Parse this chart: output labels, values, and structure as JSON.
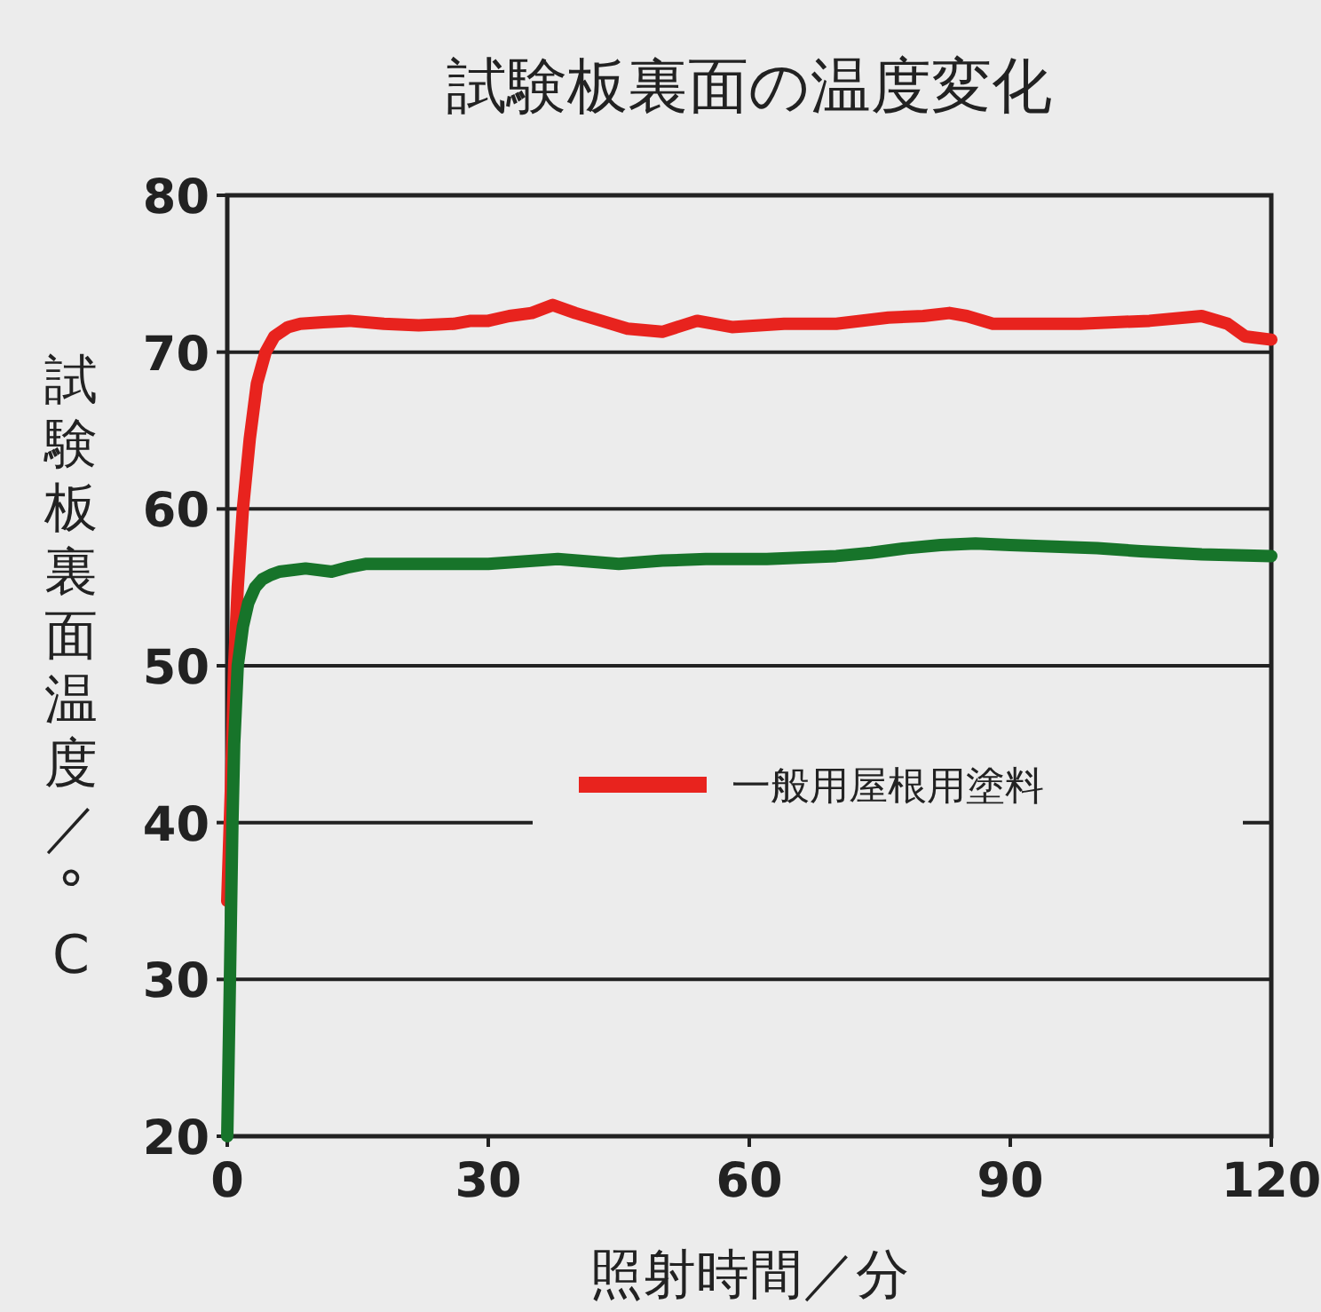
{
  "chart_data": {
    "type": "line",
    "title": "試験板裏面の温度変化",
    "xlabel": "照射時間／分",
    "ylabel": "試験板裏面温度／° C",
    "xlim": [
      0,
      120
    ],
    "xticks": [
      0,
      30,
      60,
      90,
      120
    ],
    "ylim": [
      20,
      80
    ],
    "yticks": [
      20,
      30,
      40,
      50,
      60,
      70,
      80
    ],
    "grid": "y",
    "legend": "right",
    "line_style": "solid",
    "marker": "none",
    "series": [
      {
        "name": "一般用屋根用塗料",
        "color": "#e8231e",
        "x": [
          0,
          0.4,
          0.8,
          1.2,
          1.8,
          2.6,
          3.4,
          4.4,
          5.4,
          7,
          8.4,
          11,
          14,
          18,
          22,
          26,
          28,
          30,
          32.4,
          35,
          37.4,
          40,
          43,
          46,
          50,
          54,
          58,
          64,
          70,
          76,
          80,
          83,
          85,
          88,
          93,
          98,
          102,
          106,
          112,
          115,
          117,
          120
        ],
        "values": [
          35,
          42,
          50,
          55,
          60,
          64.5,
          68,
          70,
          71,
          71.6,
          71.8,
          71.9,
          72,
          71.8,
          71.7,
          71.8,
          72,
          72,
          72.3,
          72.5,
          73,
          72.5,
          72,
          71.5,
          71.3,
          72,
          71.6,
          71.8,
          71.8,
          72.2,
          72.3,
          72.5,
          72.3,
          71.8,
          71.8,
          71.8,
          71.9,
          72,
          72.3,
          71.8,
          71,
          70.8
        ]
      },
      {
        "color": "#17742a",
        "x": [
          0,
          0.3,
          0.6,
          0.8,
          1.2,
          1.8,
          2.4,
          3.2,
          4,
          5,
          6,
          9,
          12,
          14,
          16,
          22,
          30,
          38,
          45,
          50,
          55,
          62,
          70,
          74,
          78,
          82,
          86,
          90,
          95,
          100,
          105,
          112,
          120
        ],
        "values": [
          20,
          30,
          40,
          45,
          50,
          52.5,
          54,
          55,
          55.5,
          55.8,
          56,
          56.2,
          56,
          56.3,
          56.5,
          56.5,
          56.5,
          56.8,
          56.5,
          56.7,
          56.8,
          56.8,
          57,
          57.2,
          57.5,
          57.7,
          57.8,
          57.7,
          57.6,
          57.5,
          57.3,
          57.1,
          57
        ]
      }
    ]
  }
}
